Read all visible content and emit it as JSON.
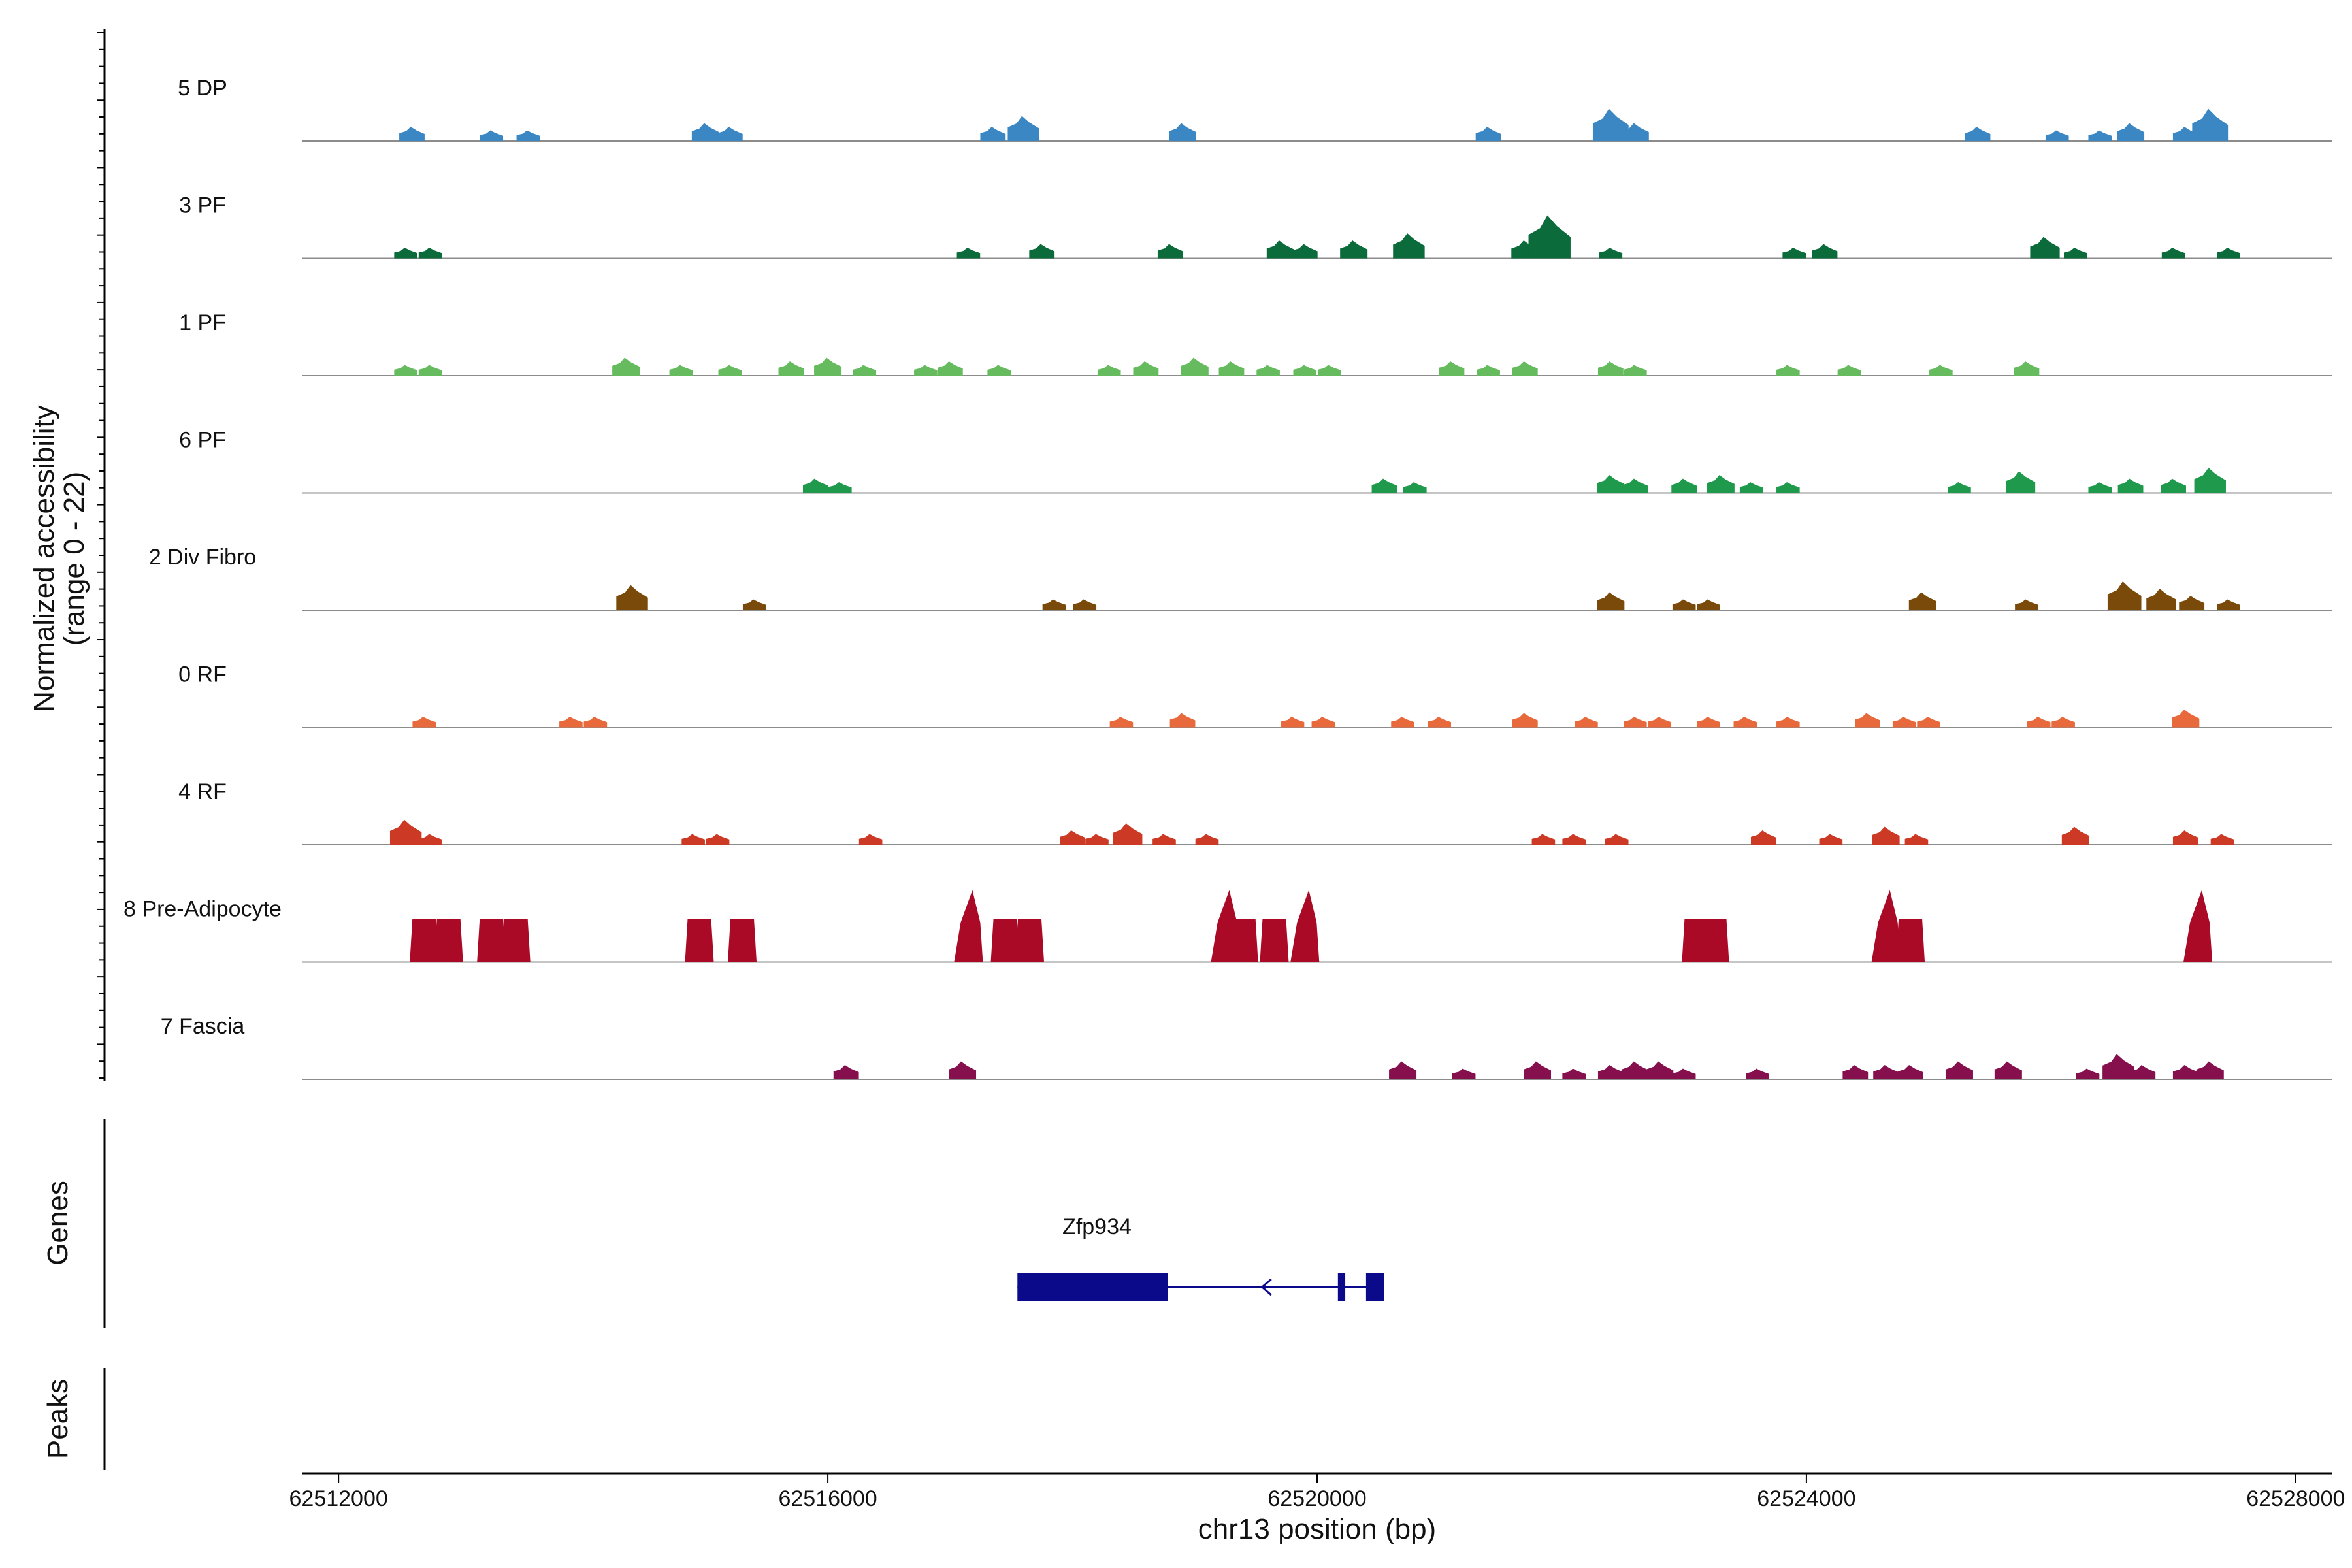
{
  "chart_data": {
    "type": "area",
    "title": "",
    "ylabel_line1": "Normalized accessibility",
    "ylabel_line2": "(range 0 - 22)",
    "xlabel": "chr13 position (bp)",
    "xlim": [
      62511700,
      62528300
    ],
    "ylim": [
      0,
      22
    ],
    "x_ticks": [
      62512000,
      62516000,
      62520000,
      62524000,
      62528000
    ],
    "x_tick_labels": [
      "62512000",
      "62516000",
      "62520000",
      "62524000",
      "62528000"
    ],
    "series": [
      {
        "name": "5 DP",
        "color": "#3a87c3",
        "peaks": [
          [
            62512600,
            4
          ],
          [
            62513250,
            3
          ],
          [
            62513550,
            3
          ],
          [
            62515000,
            5
          ],
          [
            62515200,
            4
          ],
          [
            62517350,
            4
          ],
          [
            62517600,
            7
          ],
          [
            62518900,
            5
          ],
          [
            62521400,
            4
          ],
          [
            62522400,
            9
          ],
          [
            62522600,
            5
          ],
          [
            62525400,
            4
          ],
          [
            62526050,
            3
          ],
          [
            62526400,
            3
          ],
          [
            62526650,
            5
          ],
          [
            62527100,
            4
          ],
          [
            62527300,
            9
          ]
        ]
      },
      {
        "name": "3 PF",
        "color": "#0b6b3a",
        "peaks": [
          [
            62512550,
            3
          ],
          [
            62512750,
            3
          ],
          [
            62517150,
            3
          ],
          [
            62517750,
            4
          ],
          [
            62518800,
            4
          ],
          [
            62519700,
            5
          ],
          [
            62519900,
            4
          ],
          [
            62520300,
            5
          ],
          [
            62520750,
            7
          ],
          [
            62521700,
            5
          ],
          [
            62521900,
            12
          ],
          [
            62522400,
            3
          ],
          [
            62523900,
            3
          ],
          [
            62524150,
            4
          ],
          [
            62525950,
            6
          ],
          [
            62526200,
            3
          ],
          [
            62527000,
            3
          ],
          [
            62527450,
            3
          ]
        ]
      },
      {
        "name": "1 PF",
        "color": "#66bb5e",
        "peaks": [
          [
            62512550,
            3
          ],
          [
            62512750,
            3
          ],
          [
            62514350,
            5
          ],
          [
            62514800,
            3
          ],
          [
            62515200,
            3
          ],
          [
            62515700,
            4
          ],
          [
            62516000,
            5
          ],
          [
            62516300,
            3
          ],
          [
            62516800,
            3
          ],
          [
            62517000,
            4
          ],
          [
            62517400,
            3
          ],
          [
            62518300,
            3
          ],
          [
            62518600,
            4
          ],
          [
            62519000,
            5
          ],
          [
            62519300,
            4
          ],
          [
            62519600,
            3
          ],
          [
            62519900,
            3
          ],
          [
            62520100,
            3
          ],
          [
            62521100,
            4
          ],
          [
            62521400,
            3
          ],
          [
            62521700,
            4
          ],
          [
            62522400,
            4
          ],
          [
            62522600,
            3
          ],
          [
            62523850,
            3
          ],
          [
            62524350,
            3
          ],
          [
            62525100,
            3
          ],
          [
            62525800,
            4
          ]
        ]
      },
      {
        "name": "6 PF",
        "color": "#1f9a4d",
        "peaks": [
          [
            62515900,
            4
          ],
          [
            62516100,
            3
          ],
          [
            62520550,
            4
          ],
          [
            62520800,
            3
          ],
          [
            62522400,
            5
          ],
          [
            62522600,
            4
          ],
          [
            62523000,
            4
          ],
          [
            62523300,
            5
          ],
          [
            62523550,
            3
          ],
          [
            62523850,
            3
          ],
          [
            62525250,
            3
          ],
          [
            62525750,
            6
          ],
          [
            62526400,
            3
          ],
          [
            62526650,
            4
          ],
          [
            62527000,
            4
          ],
          [
            62527300,
            7
          ]
        ]
      },
      {
        "name": "2 Div Fibro",
        "color": "#7a4a0a",
        "peaks": [
          [
            62514400,
            7
          ],
          [
            62515400,
            3
          ],
          [
            62517850,
            3
          ],
          [
            62518100,
            3
          ],
          [
            62522400,
            5
          ],
          [
            62523000,
            3
          ],
          [
            62523200,
            3
          ],
          [
            62524950,
            5
          ],
          [
            62525800,
            3
          ],
          [
            62526600,
            8
          ],
          [
            62526900,
            6
          ],
          [
            62527150,
            4
          ],
          [
            62527450,
            3
          ]
        ]
      },
      {
        "name": "0 RF",
        "color": "#e8693b",
        "peaks": [
          [
            62512700,
            3
          ],
          [
            62513900,
            3
          ],
          [
            62514100,
            3
          ],
          [
            62518400,
            3
          ],
          [
            62518900,
            4
          ],
          [
            62519800,
            3
          ],
          [
            62520050,
            3
          ],
          [
            62520700,
            3
          ],
          [
            62521000,
            3
          ],
          [
            62521700,
            4
          ],
          [
            62522200,
            3
          ],
          [
            62522600,
            3
          ],
          [
            62522800,
            3
          ],
          [
            62523200,
            3
          ],
          [
            62523500,
            3
          ],
          [
            62523850,
            3
          ],
          [
            62524500,
            4
          ],
          [
            62524800,
            3
          ],
          [
            62525000,
            3
          ],
          [
            62525900,
            3
          ],
          [
            62526100,
            3
          ],
          [
            62527100,
            5
          ]
        ]
      },
      {
        "name": "4 RF",
        "color": "#cc3a25",
        "peaks": [
          [
            62512550,
            7
          ],
          [
            62512750,
            3
          ],
          [
            62514900,
            3
          ],
          [
            62515100,
            3
          ],
          [
            62516350,
            3
          ],
          [
            62518000,
            4
          ],
          [
            62518200,
            3
          ],
          [
            62518450,
            6
          ],
          [
            62518750,
            3
          ],
          [
            62519100,
            3
          ],
          [
            62521850,
            3
          ],
          [
            62522100,
            3
          ],
          [
            62522450,
            3
          ],
          [
            62523650,
            4
          ],
          [
            62524200,
            3
          ],
          [
            62524650,
            5
          ],
          [
            62524900,
            3
          ],
          [
            62526200,
            5
          ],
          [
            62527100,
            4
          ],
          [
            62527400,
            3
          ]
        ]
      },
      {
        "name": "8 Pre-Adipocyte",
        "color": "#ab0a27",
        "peaks": [
          [
            62512700,
            12
          ],
          [
            62512900,
            12
          ],
          [
            62513250,
            12
          ],
          [
            62513450,
            12
          ],
          [
            62514950,
            12
          ],
          [
            62515300,
            12
          ],
          [
            62517150,
            20
          ],
          [
            62517450,
            12
          ],
          [
            62517650,
            12
          ],
          [
            62519250,
            20
          ],
          [
            62519400,
            12
          ],
          [
            62519650,
            12
          ],
          [
            62519900,
            20
          ],
          [
            62523100,
            12
          ],
          [
            62523250,
            12
          ],
          [
            62524650,
            20
          ],
          [
            62524850,
            12
          ],
          [
            62527200,
            20
          ]
        ]
      },
      {
        "name": "7 Fascia",
        "color": "#86104d",
        "peaks": [
          [
            62516150,
            4
          ],
          [
            62517100,
            5
          ],
          [
            62520700,
            5
          ],
          [
            62521200,
            3
          ],
          [
            62521800,
            5
          ],
          [
            62522100,
            3
          ],
          [
            62522400,
            4
          ],
          [
            62522600,
            5
          ],
          [
            62522800,
            5
          ],
          [
            62523000,
            3
          ],
          [
            62523600,
            3
          ],
          [
            62524400,
            4
          ],
          [
            62524650,
            4
          ],
          [
            62524850,
            4
          ],
          [
            62525250,
            5
          ],
          [
            62525650,
            5
          ],
          [
            62526300,
            3
          ],
          [
            62526550,
            7
          ],
          [
            62526750,
            4
          ],
          [
            62527100,
            4
          ],
          [
            62527300,
            5
          ]
        ]
      }
    ],
    "genes_label": "Genes",
    "peaks_label": "Peaks",
    "gene": {
      "name": "Zfp934",
      "strand": "-",
      "start": 62517550,
      "end": 62520550,
      "color": "#0a0a8a",
      "exons": [
        [
          62517550,
          62518780
        ],
        [
          62520170,
          62520230
        ],
        [
          62520400,
          62520550
        ]
      ]
    }
  }
}
